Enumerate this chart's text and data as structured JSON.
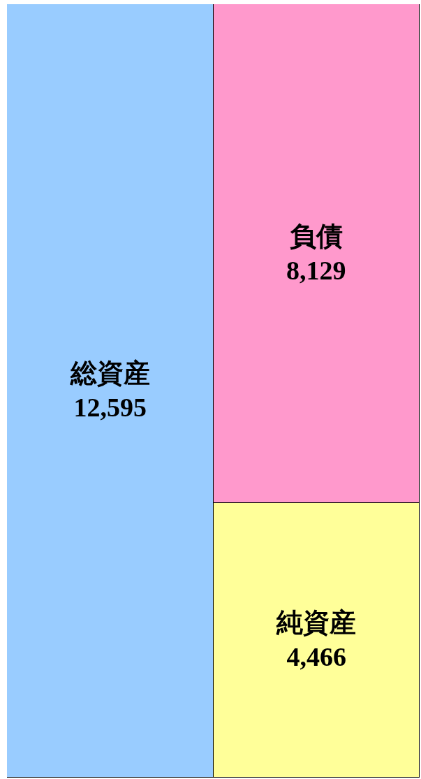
{
  "chart_data": {
    "type": "bar",
    "stacked": true,
    "categories": [
      null,
      null
    ],
    "tick_labels": false,
    "legend": false,
    "series": [
      {
        "name": "総資産",
        "color": "#99ccff",
        "values": [
          12595,
          null
        ],
        "value_labels": [
          "12,595",
          null
        ]
      },
      {
        "name": "純資産",
        "color": "#ffff99",
        "values": [
          null,
          4466
        ],
        "value_labels": [
          null,
          "4,466"
        ]
      },
      {
        "name": "負債",
        "color": "#ff99cc",
        "values": [
          null,
          8129
        ],
        "value_labels": [
          null,
          "8,129"
        ]
      }
    ]
  }
}
